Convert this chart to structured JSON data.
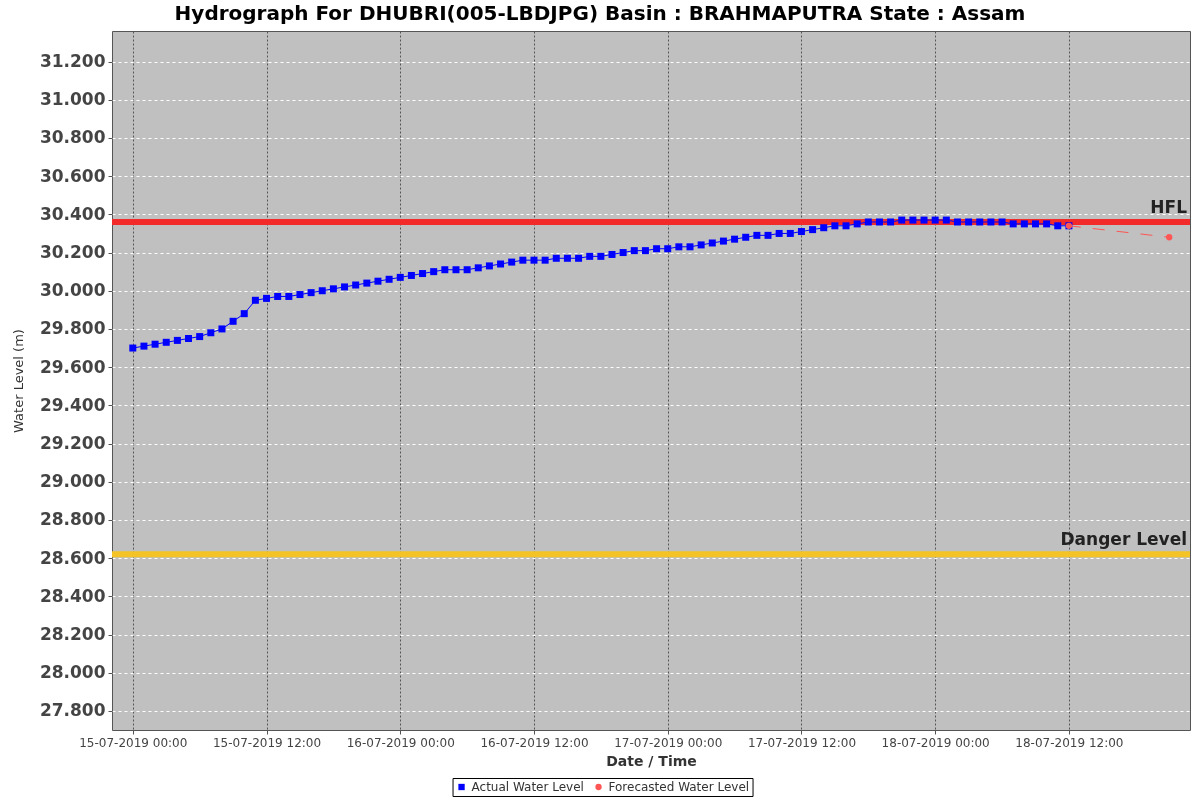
{
  "chart_data": {
    "type": "line",
    "title": "Hydrograph For DHUBRI(005-LBDJPG) Basin : BRAHMAPUTRA State : Assam",
    "xlabel": "Date / Time",
    "ylabel": "Water Level (m)",
    "series": [
      {
        "name": "Actual Water Level",
        "color": "#0000ff",
        "marker": "square",
        "line_style": "solid",
        "x": [
          "2019-07-15T00:00",
          "2019-07-15T01:00",
          "2019-07-15T02:00",
          "2019-07-15T03:00",
          "2019-07-15T04:00",
          "2019-07-15T05:00",
          "2019-07-15T06:00",
          "2019-07-15T07:00",
          "2019-07-15T08:00",
          "2019-07-15T09:00",
          "2019-07-15T10:00",
          "2019-07-15T11:00",
          "2019-07-15T12:00",
          "2019-07-15T13:00",
          "2019-07-15T14:00",
          "2019-07-15T15:00",
          "2019-07-15T16:00",
          "2019-07-15T17:00",
          "2019-07-15T18:00",
          "2019-07-15T19:00",
          "2019-07-15T20:00",
          "2019-07-15T21:00",
          "2019-07-15T22:00",
          "2019-07-15T23:00",
          "2019-07-16T00:00",
          "2019-07-16T01:00",
          "2019-07-16T02:00",
          "2019-07-16T03:00",
          "2019-07-16T04:00",
          "2019-07-16T05:00",
          "2019-07-16T06:00",
          "2019-07-16T07:00",
          "2019-07-16T08:00",
          "2019-07-16T09:00",
          "2019-07-16T10:00",
          "2019-07-16T11:00",
          "2019-07-16T12:00",
          "2019-07-16T13:00",
          "2019-07-16T14:00",
          "2019-07-16T15:00",
          "2019-07-16T16:00",
          "2019-07-16T17:00",
          "2019-07-16T18:00",
          "2019-07-16T19:00",
          "2019-07-16T20:00",
          "2019-07-16T21:00",
          "2019-07-16T22:00",
          "2019-07-16T23:00",
          "2019-07-17T00:00",
          "2019-07-17T01:00",
          "2019-07-17T02:00",
          "2019-07-17T03:00",
          "2019-07-17T04:00",
          "2019-07-17T05:00",
          "2019-07-17T06:00",
          "2019-07-17T07:00",
          "2019-07-17T08:00",
          "2019-07-17T09:00",
          "2019-07-17T10:00",
          "2019-07-17T11:00",
          "2019-07-17T12:00",
          "2019-07-17T13:00",
          "2019-07-17T14:00",
          "2019-07-17T15:00",
          "2019-07-17T16:00",
          "2019-07-17T17:00",
          "2019-07-17T18:00",
          "2019-07-17T19:00",
          "2019-07-17T20:00",
          "2019-07-17T21:00",
          "2019-07-17T22:00",
          "2019-07-17T23:00",
          "2019-07-18T00:00",
          "2019-07-18T01:00",
          "2019-07-18T02:00",
          "2019-07-18T03:00",
          "2019-07-18T04:00",
          "2019-07-18T05:00",
          "2019-07-18T06:00",
          "2019-07-18T07:00",
          "2019-07-18T08:00",
          "2019-07-18T09:00",
          "2019-07-18T10:00",
          "2019-07-18T11:00",
          "2019-07-18T12:00"
        ],
        "values": [
          29.7,
          29.71,
          29.72,
          29.73,
          29.74,
          29.75,
          29.76,
          29.78,
          29.8,
          29.84,
          29.88,
          29.95,
          29.96,
          29.97,
          29.97,
          29.98,
          29.99,
          30.0,
          30.01,
          30.02,
          30.03,
          30.04,
          30.05,
          30.06,
          30.07,
          30.08,
          30.09,
          30.1,
          30.11,
          30.11,
          30.11,
          30.12,
          30.13,
          30.14,
          30.15,
          30.16,
          30.16,
          30.16,
          30.17,
          30.17,
          30.17,
          30.18,
          30.18,
          30.19,
          30.2,
          30.21,
          30.21,
          30.22,
          30.22,
          30.23,
          30.23,
          30.24,
          30.25,
          30.26,
          30.27,
          30.28,
          30.29,
          30.29,
          30.3,
          30.3,
          30.31,
          30.32,
          30.33,
          30.34,
          30.34,
          30.35,
          30.36,
          30.36,
          30.36,
          30.37,
          30.37,
          30.37,
          30.37,
          30.37,
          30.36,
          30.36,
          30.36,
          30.36,
          30.36,
          30.35,
          30.35,
          30.35,
          30.35,
          30.34,
          30.34
        ]
      },
      {
        "name": "Forecasted Water Level",
        "color": "#ff5555",
        "marker": "circle",
        "line_style": "dashed",
        "x": [
          "2019-07-18T12:00",
          "2019-07-18T21:00"
        ],
        "values": [
          30.34,
          30.28
        ]
      }
    ],
    "xlim": [
      "2019-07-14T22:08",
      "2019-07-18T22:52"
    ],
    "xticks": [
      {
        "value": "2019-07-15T00:00",
        "label": "15-07-2019 00:00"
      },
      {
        "value": "2019-07-15T12:00",
        "label": "15-07-2019 12:00"
      },
      {
        "value": "2019-07-16T00:00",
        "label": "16-07-2019 00:00"
      },
      {
        "value": "2019-07-16T12:00",
        "label": "16-07-2019 12:00"
      },
      {
        "value": "2019-07-17T00:00",
        "label": "17-07-2019 00:00"
      },
      {
        "value": "2019-07-17T12:00",
        "label": "17-07-2019 12:00"
      },
      {
        "value": "2019-07-18T00:00",
        "label": "18-07-2019 00:00"
      },
      {
        "value": "2019-07-18T12:00",
        "label": "18-07-2019 12:00"
      }
    ],
    "ylim": [
      27.7,
      31.36
    ],
    "yticks": [
      {
        "value": 27.8,
        "label": "27.800"
      },
      {
        "value": 28.0,
        "label": "28.000"
      },
      {
        "value": 28.2,
        "label": "28.200"
      },
      {
        "value": 28.4,
        "label": "28.400"
      },
      {
        "value": 28.6,
        "label": "28.600"
      },
      {
        "value": 28.8,
        "label": "28.800"
      },
      {
        "value": 29.0,
        "label": "29.000"
      },
      {
        "value": 29.2,
        "label": "29.200"
      },
      {
        "value": 29.4,
        "label": "29.400"
      },
      {
        "value": 29.6,
        "label": "29.600"
      },
      {
        "value": 29.8,
        "label": "29.800"
      },
      {
        "value": 30.0,
        "label": "30.000"
      },
      {
        "value": 30.2,
        "label": "30.200"
      },
      {
        "value": 30.4,
        "label": "30.400"
      },
      {
        "value": 30.6,
        "label": "30.600"
      },
      {
        "value": 30.8,
        "label": "30.800"
      },
      {
        "value": 31.0,
        "label": "31.000"
      },
      {
        "value": 31.2,
        "label": "31.200"
      }
    ],
    "ref_lines": [
      {
        "axis": "y",
        "value": 30.36,
        "label": "HFL",
        "color": "#f22a2a"
      },
      {
        "axis": "y",
        "value": 28.62,
        "label": "Danger Level",
        "color": "#f4c426"
      }
    ],
    "grid": true,
    "legend": "bottom"
  }
}
